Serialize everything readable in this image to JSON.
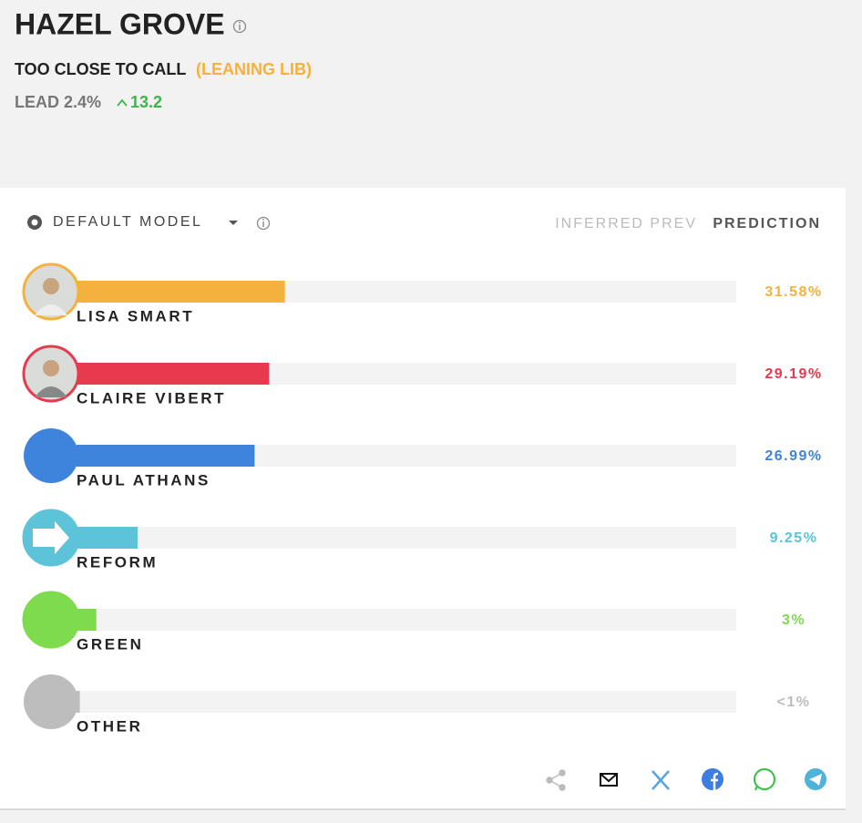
{
  "header": {
    "title": "HAZEL GROVE",
    "status": "TOO CLOSE TO CALL",
    "leaning": "(LEANING LIB)",
    "lead": "LEAD 2.4%",
    "change": "13.2"
  },
  "controls": {
    "model": "DEFAULT MODEL",
    "tabs": [
      "INFERRED PREV",
      "PREDICTION"
    ]
  },
  "chart_data": {
    "type": "bar",
    "orientation": "horizontal",
    "categories": [
      "LISA SMART",
      "CLAIRE VIBERT",
      "PAUL ATHANS",
      "REFORM",
      "GREEN",
      "OTHER"
    ],
    "values": [
      31.58,
      29.19,
      26.99,
      9.25,
      3,
      0.5
    ],
    "value_labels": [
      "31.58%",
      "29.19%",
      "26.99%",
      "9.25%",
      "3%",
      "<1%"
    ],
    "colors": [
      "#f4b13e",
      "#e73a4e",
      "#3f84dc",
      "#5cc3d9",
      "#7fdb4e",
      "#bdbdbd"
    ],
    "xlim": [
      0,
      100
    ]
  }
}
